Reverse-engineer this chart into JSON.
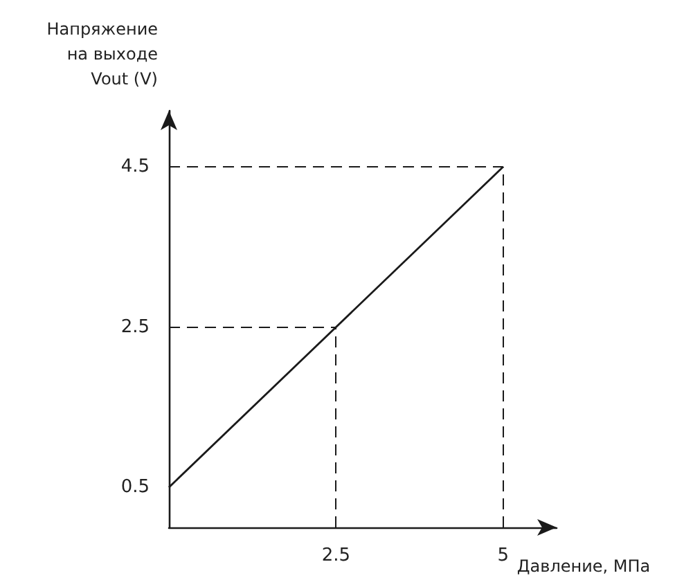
{
  "chart_data": {
    "type": "line",
    "xlabel": "Давление, МПа",
    "ylabel": "Напряжение\nна выходе\nVout (V)",
    "x": [
      0,
      5
    ],
    "series": [
      {
        "color": "#1a1a1a",
        "values": [
          0.5,
          4.5
        ]
      }
    ],
    "xlim": [
      0,
      5.8
    ],
    "ylim": [
      0,
      5.2
    ],
    "xticks": [
      2.5,
      5
    ],
    "yticks": [
      0.5,
      2.5,
      4.5
    ],
    "ref_lines": [
      {
        "axis": "x",
        "value": 2.5,
        "color": "#1a1a1a",
        "line_style": "dashed"
      },
      {
        "axis": "y",
        "value": 2.5,
        "color": "#1a1a1a",
        "line_style": "dashed"
      },
      {
        "axis": "x",
        "value": 5,
        "color": "#1a1a1a",
        "line_style": "dashed"
      },
      {
        "axis": "y",
        "value": 4.5,
        "color": "#1a1a1a",
        "line_style": "dashed"
      }
    ],
    "grid": false,
    "marker": "none",
    "line_style": "solid"
  }
}
